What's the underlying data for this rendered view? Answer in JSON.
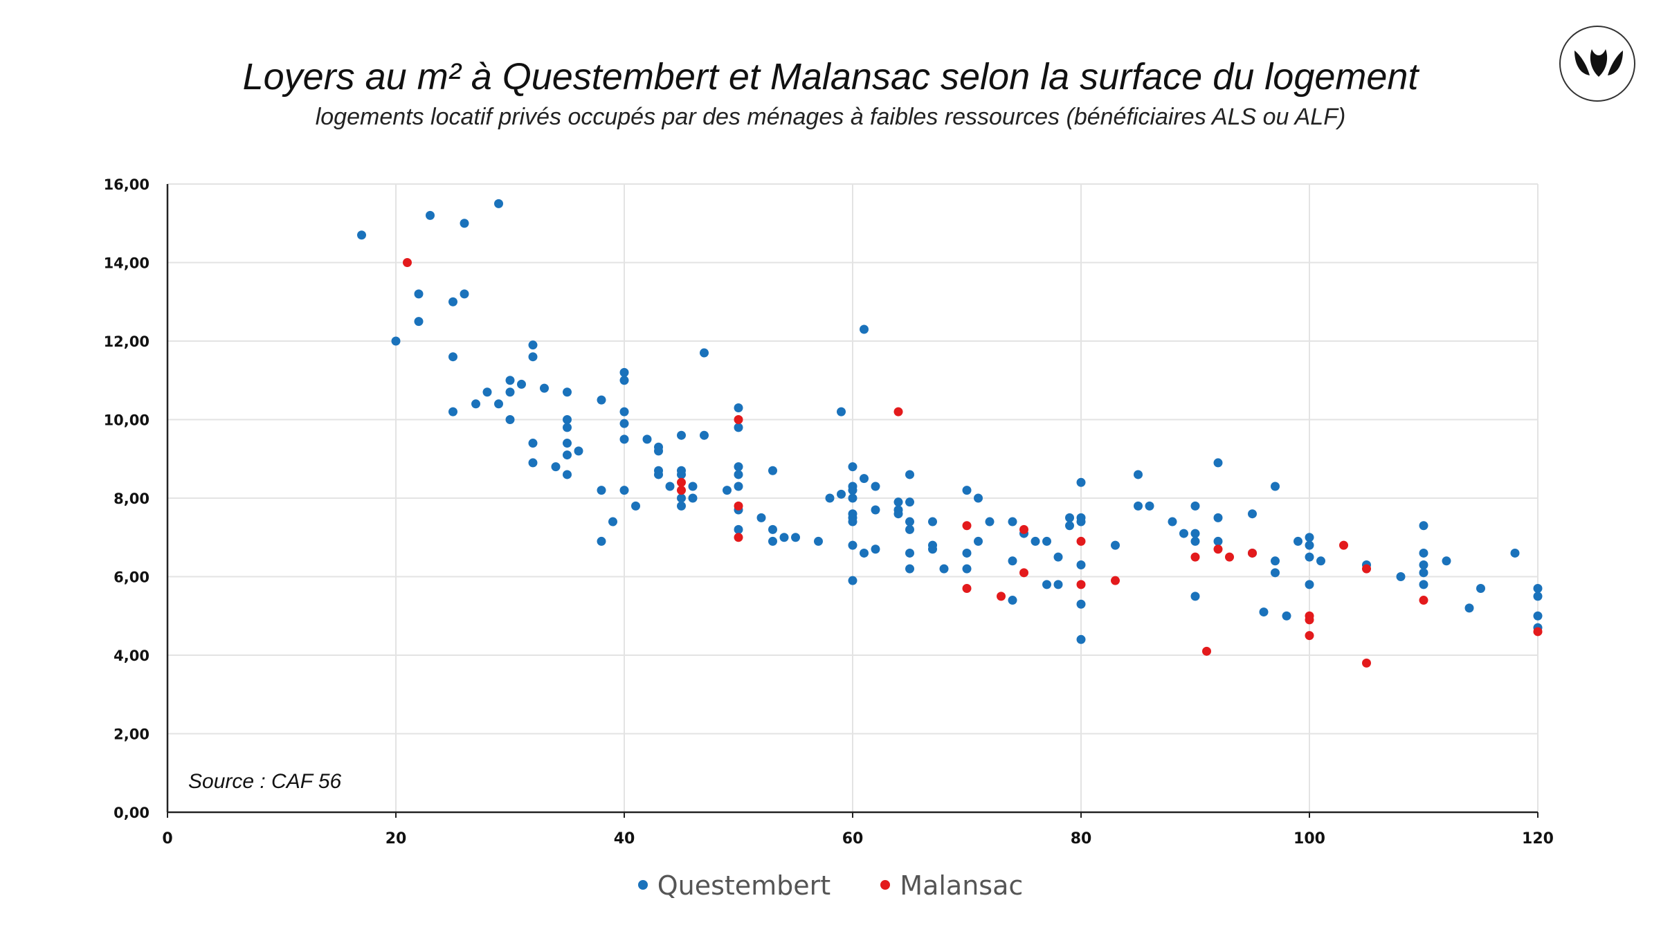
{
  "colors": {
    "questembert": "#1a72bb",
    "malansac": "#e31a1c",
    "grid": "#e3e3e3",
    "axis": "#222222"
  },
  "logo": {
    "icon": "leaf-logo-icon"
  },
  "source_note": "Source : CAF 56",
  "chart_data": {
    "type": "scatter",
    "title": "Loyers au m² à Questembert et Malansac selon la surface du logement",
    "subtitle": "logements locatif privés occupés par des ménages à faibles ressources (bénéficiaires ALS ou ALF)",
    "xlabel": "",
    "ylabel": "",
    "xlim": [
      0,
      120
    ],
    "ylim": [
      0,
      16
    ],
    "x_ticks": [
      "0",
      "20",
      "40",
      "60",
      "80",
      "100",
      "120"
    ],
    "y_ticks": [
      "0,00",
      "2,00",
      "4,00",
      "6,00",
      "8,00",
      "10,00",
      "12,00",
      "14,00",
      "16,00"
    ],
    "grid": true,
    "legend_position": "bottom",
    "series": [
      {
        "name": "Questembert",
        "color": "#1a72bb",
        "points": [
          [
            17,
            14.7
          ],
          [
            20,
            12.0
          ],
          [
            22,
            13.2
          ],
          [
            22,
            12.5
          ],
          [
            23,
            15.2
          ],
          [
            25,
            13.0
          ],
          [
            25,
            11.6
          ],
          [
            25,
            10.2
          ],
          [
            26,
            15.0
          ],
          [
            26,
            13.2
          ],
          [
            27,
            10.4
          ],
          [
            28,
            10.7
          ],
          [
            29,
            15.5
          ],
          [
            29,
            10.4
          ],
          [
            30,
            11.0
          ],
          [
            30,
            10.7
          ],
          [
            30,
            10.0
          ],
          [
            31,
            10.9
          ],
          [
            32,
            11.9
          ],
          [
            32,
            11.6
          ],
          [
            32,
            9.4
          ],
          [
            32,
            8.9
          ],
          [
            33,
            10.8
          ],
          [
            34,
            8.8
          ],
          [
            35,
            10.7
          ],
          [
            35,
            10.0
          ],
          [
            35,
            9.8
          ],
          [
            35,
            9.4
          ],
          [
            35,
            9.1
          ],
          [
            35,
            8.6
          ],
          [
            36,
            9.2
          ],
          [
            38,
            10.5
          ],
          [
            38,
            8.2
          ],
          [
            38,
            6.9
          ],
          [
            39,
            7.4
          ],
          [
            40,
            11.2
          ],
          [
            40,
            11.0
          ],
          [
            40,
            10.2
          ],
          [
            40,
            9.9
          ],
          [
            40,
            9.5
          ],
          [
            40,
            8.2
          ],
          [
            41,
            7.8
          ],
          [
            42,
            9.5
          ],
          [
            43,
            9.3
          ],
          [
            43,
            9.2
          ],
          [
            43,
            8.7
          ],
          [
            43,
            8.6
          ],
          [
            44,
            8.3
          ],
          [
            45,
            9.6
          ],
          [
            45,
            8.7
          ],
          [
            45,
            8.6
          ],
          [
            45,
            8.0
          ],
          [
            45,
            7.8
          ],
          [
            46,
            8.3
          ],
          [
            46,
            8.0
          ],
          [
            47,
            11.7
          ],
          [
            47,
            9.6
          ],
          [
            49,
            8.2
          ],
          [
            50,
            10.3
          ],
          [
            50,
            9.8
          ],
          [
            50,
            8.8
          ],
          [
            50,
            8.6
          ],
          [
            50,
            8.3
          ],
          [
            50,
            7.7
          ],
          [
            50,
            7.2
          ],
          [
            52,
            7.5
          ],
          [
            53,
            8.7
          ],
          [
            53,
            7.2
          ],
          [
            53,
            6.9
          ],
          [
            54,
            7.0
          ],
          [
            55,
            7.0
          ],
          [
            57,
            6.9
          ],
          [
            58,
            8.0
          ],
          [
            59,
            10.2
          ],
          [
            59,
            8.1
          ],
          [
            60,
            8.8
          ],
          [
            60,
            8.3
          ],
          [
            60,
            8.2
          ],
          [
            60,
            8.0
          ],
          [
            60,
            7.6
          ],
          [
            60,
            7.5
          ],
          [
            60,
            7.4
          ],
          [
            60,
            6.8
          ],
          [
            60,
            5.9
          ],
          [
            61,
            12.3
          ],
          [
            61,
            8.5
          ],
          [
            61,
            6.6
          ],
          [
            62,
            8.3
          ],
          [
            62,
            7.7
          ],
          [
            62,
            6.7
          ],
          [
            64,
            7.9
          ],
          [
            64,
            7.7
          ],
          [
            64,
            7.6
          ],
          [
            65,
            8.6
          ],
          [
            65,
            7.9
          ],
          [
            65,
            7.4
          ],
          [
            65,
            7.2
          ],
          [
            65,
            6.6
          ],
          [
            65,
            6.2
          ],
          [
            67,
            7.4
          ],
          [
            67,
            6.8
          ],
          [
            67,
            6.7
          ],
          [
            68,
            6.2
          ],
          [
            70,
            8.2
          ],
          [
            70,
            6.6
          ],
          [
            70,
            6.2
          ],
          [
            71,
            8.0
          ],
          [
            71,
            6.9
          ],
          [
            72,
            7.4
          ],
          [
            74,
            7.4
          ],
          [
            74,
            6.4
          ],
          [
            74,
            5.4
          ],
          [
            75,
            7.1
          ],
          [
            76,
            6.9
          ],
          [
            77,
            6.9
          ],
          [
            77,
            5.8
          ],
          [
            78,
            6.5
          ],
          [
            78,
            5.8
          ],
          [
            79,
            7.5
          ],
          [
            79,
            7.3
          ],
          [
            80,
            8.4
          ],
          [
            80,
            7.5
          ],
          [
            80,
            7.4
          ],
          [
            80,
            6.3
          ],
          [
            80,
            5.3
          ],
          [
            80,
            4.4
          ],
          [
            83,
            6.8
          ],
          [
            85,
            8.6
          ],
          [
            85,
            7.8
          ],
          [
            86,
            7.8
          ],
          [
            88,
            7.4
          ],
          [
            89,
            7.1
          ],
          [
            90,
            7.8
          ],
          [
            90,
            7.1
          ],
          [
            90,
            6.9
          ],
          [
            90,
            5.5
          ],
          [
            92,
            8.9
          ],
          [
            92,
            7.5
          ],
          [
            92,
            6.9
          ],
          [
            95,
            7.6
          ],
          [
            95,
            6.6
          ],
          [
            96,
            5.1
          ],
          [
            97,
            8.3
          ],
          [
            97,
            6.4
          ],
          [
            97,
            6.1
          ],
          [
            98,
            5.0
          ],
          [
            99,
            6.9
          ],
          [
            100,
            7.0
          ],
          [
            100,
            6.8
          ],
          [
            100,
            6.5
          ],
          [
            100,
            5.8
          ],
          [
            101,
            6.4
          ],
          [
            105,
            6.3
          ],
          [
            108,
            6.0
          ],
          [
            110,
            7.3
          ],
          [
            110,
            6.6
          ],
          [
            110,
            6.3
          ],
          [
            110,
            6.1
          ],
          [
            110,
            5.8
          ],
          [
            112,
            6.4
          ],
          [
            114,
            5.2
          ],
          [
            115,
            5.7
          ],
          [
            118,
            6.6
          ],
          [
            120,
            5.7
          ],
          [
            120,
            5.5
          ],
          [
            120,
            5.0
          ],
          [
            120,
            4.7
          ]
        ]
      },
      {
        "name": "Malansac",
        "color": "#e31a1c",
        "points": [
          [
            21,
            14.0
          ],
          [
            45,
            8.4
          ],
          [
            45,
            8.2
          ],
          [
            50,
            10.0
          ],
          [
            50,
            7.8
          ],
          [
            50,
            7.0
          ],
          [
            64,
            10.2
          ],
          [
            70,
            7.3
          ],
          [
            70,
            5.7
          ],
          [
            73,
            5.5
          ],
          [
            75,
            7.2
          ],
          [
            75,
            6.1
          ],
          [
            80,
            6.9
          ],
          [
            80,
            5.8
          ],
          [
            83,
            5.9
          ],
          [
            90,
            6.5
          ],
          [
            91,
            4.1
          ],
          [
            92,
            6.7
          ],
          [
            93,
            6.5
          ],
          [
            95,
            6.6
          ],
          [
            100,
            5.0
          ],
          [
            100,
            4.9
          ],
          [
            100,
            4.5
          ],
          [
            103,
            6.8
          ],
          [
            105,
            6.2
          ],
          [
            105,
            3.8
          ],
          [
            110,
            5.4
          ],
          [
            120,
            4.6
          ]
        ]
      }
    ]
  }
}
